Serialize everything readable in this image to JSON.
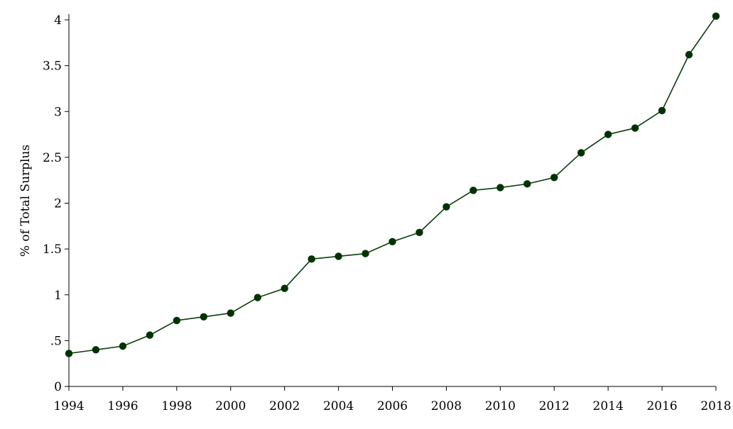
{
  "chart_data": {
    "type": "line",
    "ylabel": "% of Total Surplus",
    "xlabel": "",
    "title": "",
    "xlim": [
      1994,
      2018
    ],
    "ylim": [
      0,
      4
    ],
    "grid": false,
    "x_ticks": [
      1994,
      1996,
      1998,
      2000,
      2002,
      2004,
      2006,
      2008,
      2010,
      2012,
      2014,
      2016,
      2018
    ],
    "y_ticks": [
      0,
      0.5,
      1,
      1.5,
      2,
      2.5,
      3,
      3.5,
      4
    ],
    "y_tick_labels": [
      "0",
      ".5",
      "1",
      "1.5",
      "2",
      "2.5",
      "3",
      "3.5",
      "4"
    ],
    "series": [
      {
        "color": "#0b3d0b",
        "marker_color": "#003300",
        "x": [
          1994,
          1995,
          1996,
          1997,
          1998,
          1999,
          2000,
          2001,
          2002,
          2003,
          2004,
          2005,
          2006,
          2007,
          2008,
          2009,
          2010,
          2011,
          2012,
          2013,
          2014,
          2015,
          2016,
          2017,
          2018
        ],
        "values": [
          0.36,
          0.4,
          0.44,
          0.56,
          0.72,
          0.76,
          0.8,
          0.97,
          1.07,
          1.39,
          1.42,
          1.45,
          1.58,
          1.68,
          1.96,
          2.14,
          2.17,
          2.21,
          2.28,
          2.55,
          2.75,
          2.82,
          3.01,
          3.62,
          4.04
        ]
      }
    ]
  }
}
